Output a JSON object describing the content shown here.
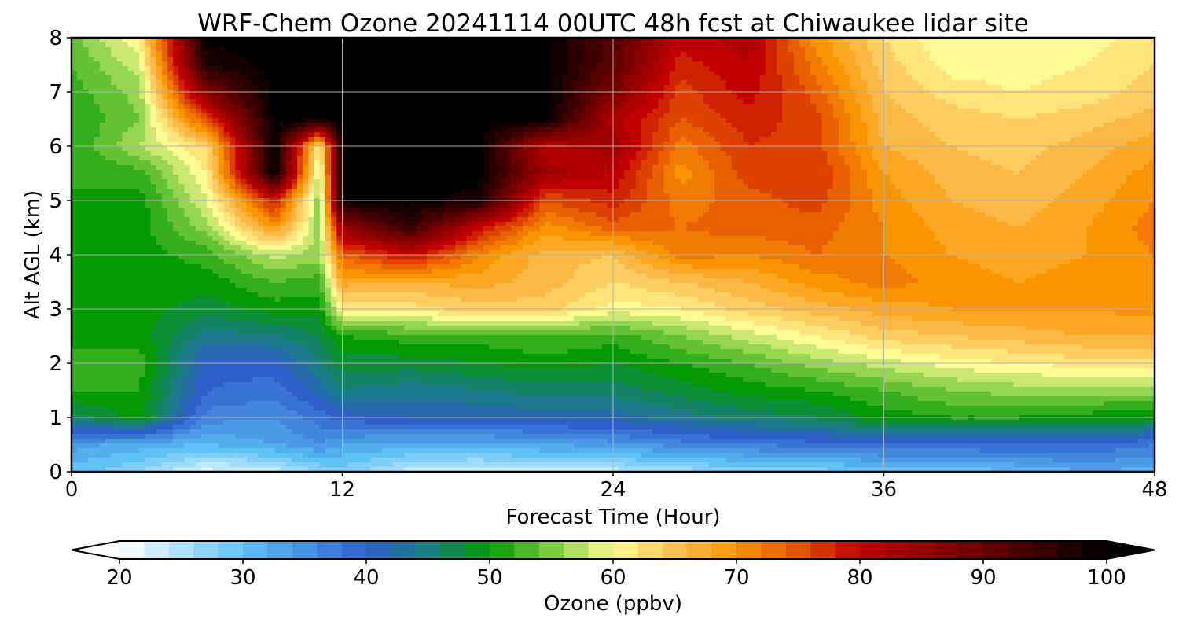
{
  "chart_data": {
    "type": "heatmap",
    "title": "WRF-Chem Ozone  20241114 00UTC 48h fcst at Chiwaukee lidar site",
    "xlabel": "Forecast Time (Hour)",
    "ylabel": "Alt AGL (km)",
    "xlim": [
      0,
      48
    ],
    "ylim": [
      0,
      8
    ],
    "xticks": [
      0,
      12,
      24,
      36,
      48
    ],
    "yticks": [
      0,
      1,
      2,
      3,
      4,
      5,
      6,
      7,
      8
    ],
    "grid": true,
    "colorbar": {
      "label": "Ozone  (ppbv)",
      "range": [
        20,
        100
      ],
      "ticks": [
        20,
        30,
        40,
        50,
        60,
        70,
        80,
        90,
        100
      ],
      "extend": "both",
      "stops": [
        {
          "value": 20,
          "color": "#ffffff"
        },
        {
          "value": 30,
          "color": "#5ec2f7"
        },
        {
          "value": 40,
          "color": "#2f60cc"
        },
        {
          "value": 45,
          "color": "#1a8080"
        },
        {
          "value": 50,
          "color": "#059a05"
        },
        {
          "value": 55,
          "color": "#7ccc40"
        },
        {
          "value": 60,
          "color": "#fffb94"
        },
        {
          "value": 65,
          "color": "#fdc155"
        },
        {
          "value": 70,
          "color": "#fa9500"
        },
        {
          "value": 75,
          "color": "#e45300"
        },
        {
          "value": 80,
          "color": "#c20000"
        },
        {
          "value": 90,
          "color": "#680000"
        },
        {
          "value": 100,
          "color": "#000000"
        }
      ]
    },
    "z_unit": "ppbv",
    "x": [
      0,
      3,
      6,
      9,
      11,
      12,
      15,
      18,
      21,
      24,
      27,
      30,
      33,
      36,
      39,
      42,
      45,
      48
    ],
    "y": [
      0,
      0.5,
      1,
      1.5,
      2,
      2.5,
      3,
      3.5,
      4,
      4.5,
      5,
      5.5,
      6,
      6.5,
      7,
      7.5,
      8
    ],
    "z": [
      [
        30,
        27,
        22,
        24,
        27,
        28,
        24,
        23,
        24,
        24,
        26,
        27,
        28,
        29,
        29,
        31,
        33,
        32
      ],
      [
        34,
        32,
        31,
        33,
        35,
        33,
        32,
        32,
        33,
        34,
        36,
        37,
        38,
        39,
        39,
        39,
        39,
        37
      ],
      [
        46,
        50,
        36,
        35,
        38,
        40,
        41,
        41,
        42,
        42,
        44,
        46,
        47,
        50,
        51,
        51,
        50,
        49
      ],
      [
        51,
        51,
        39,
        38,
        42,
        45,
        44,
        45,
        46,
        46,
        48,
        50,
        51,
        53,
        55,
        56,
        56,
        56
      ],
      [
        52,
        52,
        40,
        40,
        45,
        48,
        48,
        49,
        50,
        49,
        51,
        53,
        56,
        58,
        60,
        61,
        62,
        62
      ],
      [
        50,
        50,
        44,
        45,
        47,
        51,
        52,
        52,
        53,
        52,
        55,
        58,
        61,
        64,
        65,
        66,
        67,
        67
      ],
      [
        50,
        50,
        48,
        50,
        50,
        61,
        62,
        64,
        64,
        60,
        61,
        64,
        66,
        68,
        69,
        69,
        69,
        70
      ],
      [
        50,
        50,
        50,
        53,
        52,
        68,
        67,
        68,
        66,
        63,
        65,
        67,
        70,
        72,
        70,
        69,
        70,
        71
      ],
      [
        50,
        50,
        52,
        58,
        56,
        74,
        80,
        71,
        66,
        65,
        72,
        71,
        73,
        71,
        69,
        68,
        69,
        71
      ],
      [
        51,
        50,
        56,
        70,
        56,
        85,
        95,
        80,
        70,
        74,
        73,
        74,
        74,
        71,
        68,
        67,
        69,
        72
      ],
      [
        51,
        50,
        59,
        79,
        55,
        99,
        100,
        98,
        75,
        78,
        72,
        74,
        76,
        70,
        67,
        66,
        68,
        71
      ],
      [
        51,
        52,
        61,
        100,
        57,
        100,
        100,
        100,
        84,
        81,
        70,
        76,
        77,
        69,
        66,
        65,
        67,
        70
      ],
      [
        51,
        57,
        63,
        100,
        60,
        100,
        100,
        100,
        81,
        84,
        72,
        77,
        76,
        67,
        65,
        64,
        66,
        68
      ],
      [
        51,
        55,
        76,
        100,
        100,
        100,
        100,
        100,
        100,
        82,
        75,
        78,
        76,
        66,
        64,
        63,
        64,
        66
      ],
      [
        52,
        56,
        88,
        100,
        100,
        100,
        100,
        100,
        100,
        88,
        76,
        80,
        74,
        65,
        62,
        61,
        62,
        64
      ],
      [
        53,
        58,
        97,
        100,
        100,
        100,
        100,
        100,
        100,
        91,
        78,
        81,
        72,
        64,
        60,
        60,
        61,
        63
      ],
      [
        54,
        61,
        100,
        100,
        100,
        100,
        100,
        100,
        100,
        92,
        80,
        82,
        70,
        63,
        59,
        59,
        60,
        62
      ]
    ]
  }
}
